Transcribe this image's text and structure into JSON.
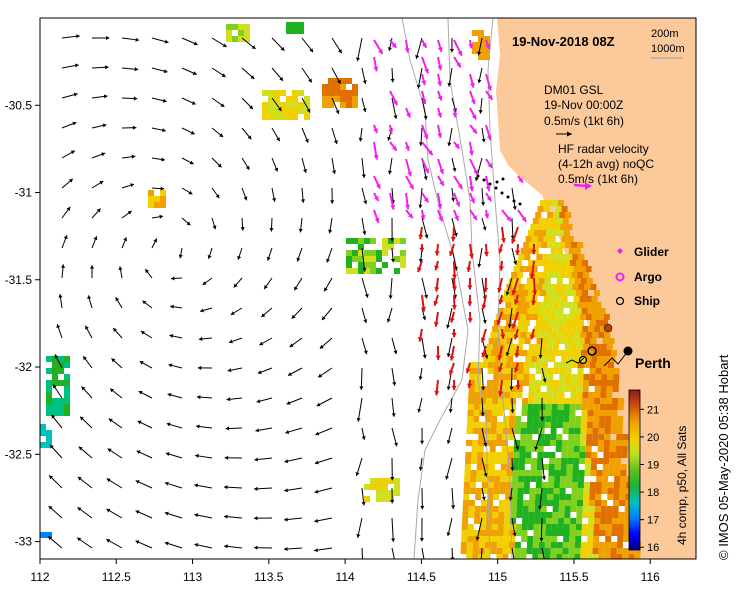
{
  "title": "19-Nov-2018 08Z",
  "depth_contours": [
    "200m",
    "1000m"
  ],
  "model_legend": {
    "lines": [
      "DM01 GSL",
      "19-Nov 00:00Z",
      "0.5m/s (1kt 6h)"
    ]
  },
  "radar_legend": {
    "lines": [
      "HF radar velocity",
      "(4-12h avg) noQC",
      "0.5m/s (1kt 6h)"
    ]
  },
  "platform_legend": [
    {
      "label": "Glider",
      "color": "#ee22ee",
      "icon": "diamond-icon"
    },
    {
      "label": "Argo",
      "color": "#ee22ee",
      "icon": "argo-circle-icon"
    },
    {
      "label": "Ship",
      "color": "#000000",
      "icon": "ring-icon"
    }
  ],
  "place_label": "Perth",
  "credit": "© IMOS 05-May-2020 05:38 Hobart",
  "colorbar": {
    "label": "4h comp, p50, All Sats",
    "ticks": [
      "16",
      "17",
      "18",
      "19",
      "20",
      "21"
    ],
    "min": 15.9,
    "max": 21.7,
    "colors": [
      "#000080",
      "#0000ff",
      "#0080ff",
      "#00c0c0",
      "#00c080",
      "#20b020",
      "#80d020",
      "#d0e020",
      "#f0d000",
      "#f0a000",
      "#e07000",
      "#c04010",
      "#8b1a1a"
    ]
  },
  "x_axis": {
    "ticks": [
      "112",
      "112.5",
      "113",
      "113.5",
      "114",
      "114.5",
      "115",
      "115.5",
      "116"
    ],
    "min": 112,
    "max": 116.3
  },
  "y_axis": {
    "ticks": [
      "-30.5",
      "-31",
      "-31.5",
      "-32",
      "-32.5",
      "-33"
    ],
    "min": -33.1,
    "max": -30.0
  },
  "colors": {
    "land": "#fcc99a",
    "model_arrow": "#000000",
    "radar_arrow_north": "#ee22ee",
    "radar_arrow_south": "#dd1111"
  }
}
